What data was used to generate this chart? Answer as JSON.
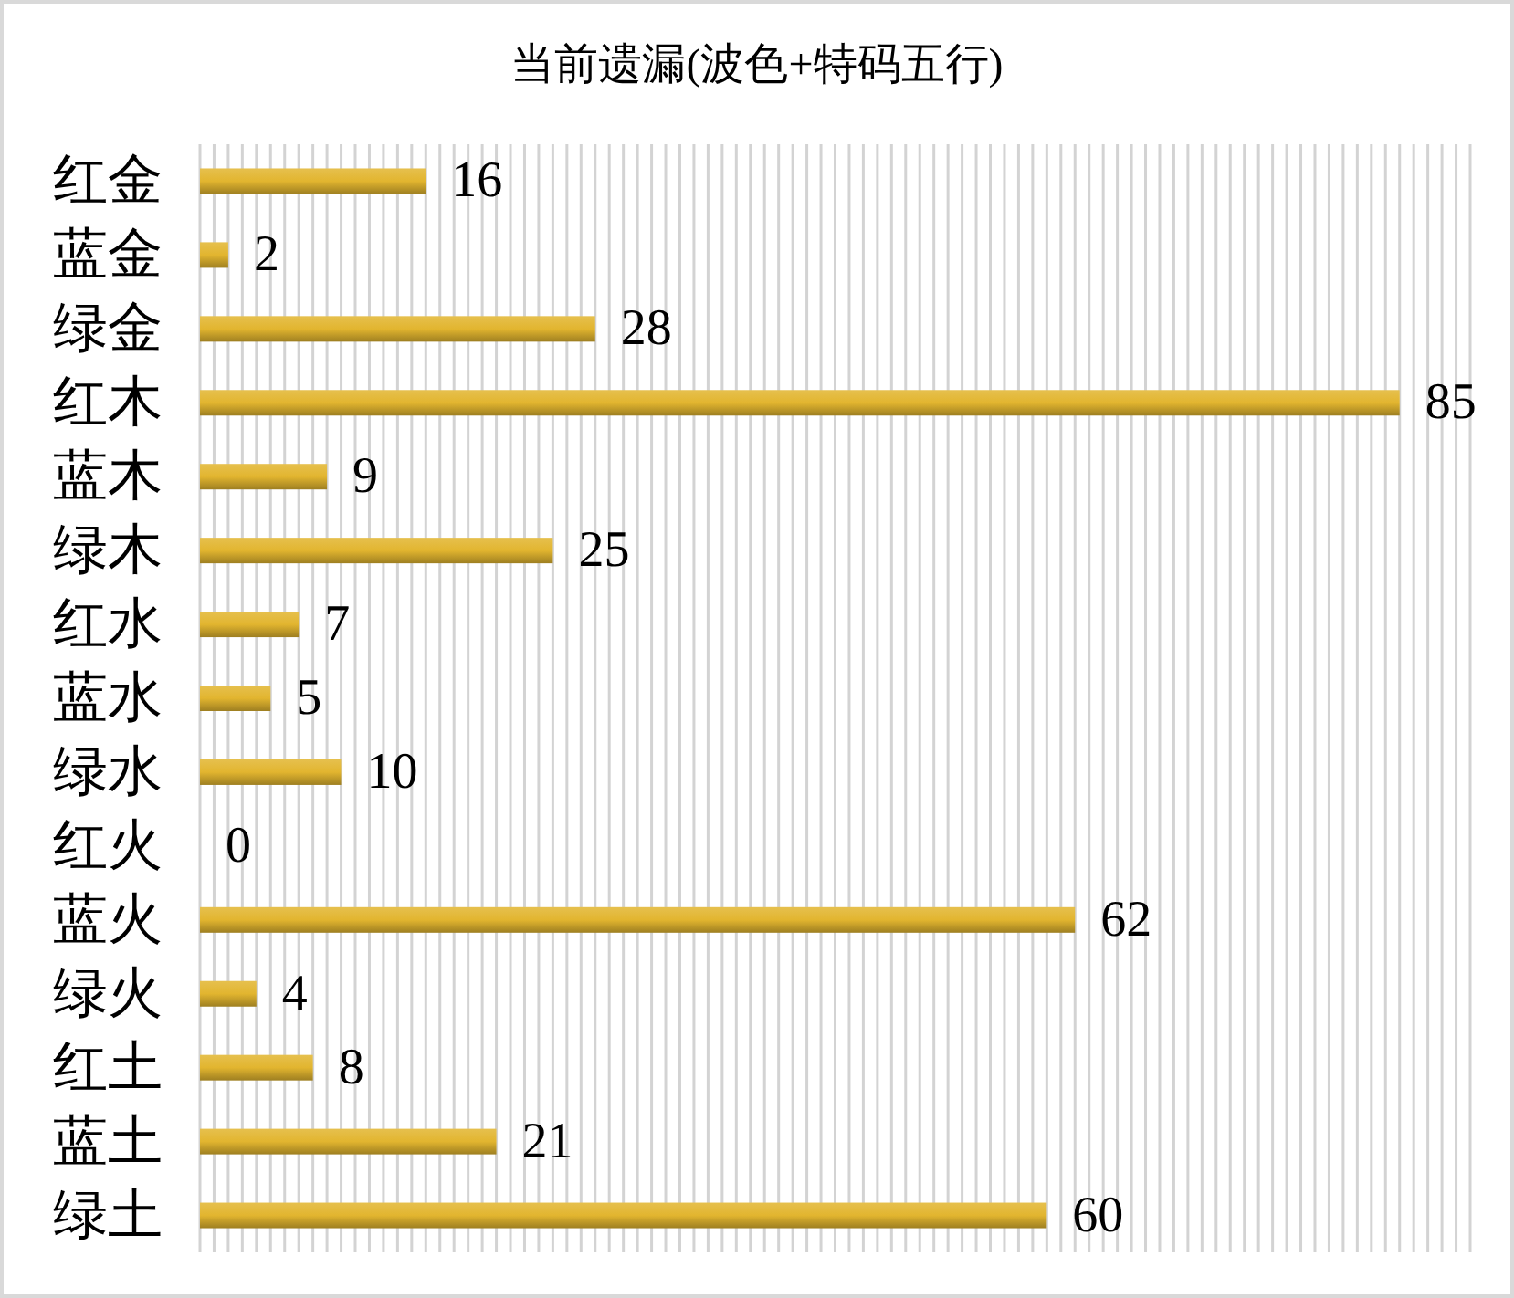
{
  "chart_data": {
    "type": "bar",
    "orientation": "horizontal",
    "title": "当前遗漏(波色+特码五行)",
    "categories": [
      "红金",
      "蓝金",
      "绿金",
      "红木",
      "蓝木",
      "绿木",
      "红水",
      "蓝水",
      "绿水",
      "红火",
      "蓝火",
      "绿火",
      "红土",
      "蓝土",
      "绿土"
    ],
    "values": [
      16,
      2,
      28,
      85,
      9,
      25,
      7,
      5,
      10,
      0,
      62,
      4,
      8,
      21,
      60
    ],
    "color": "#e2b52f",
    "xlim": [
      0,
      90
    ],
    "xticks": [
      {
        "value": 0,
        "label": null
      },
      {
        "value": 1,
        "label": null
      },
      {
        "value": 2,
        "label": null
      },
      {
        "value": 3,
        "label": null
      },
      {
        "value": 4,
        "label": null
      },
      {
        "value": 5,
        "label": null
      },
      {
        "value": 6,
        "label": null
      },
      {
        "value": 7,
        "label": null
      },
      {
        "value": 8,
        "label": null
      },
      {
        "value": 9,
        "label": null
      },
      {
        "value": 10,
        "label": null
      },
      {
        "value": 11,
        "label": null
      },
      {
        "value": 12,
        "label": null
      },
      {
        "value": 13,
        "label": null
      },
      {
        "value": 14,
        "label": null
      },
      {
        "value": 15,
        "label": null
      },
      {
        "value": 16,
        "label": null
      },
      {
        "value": 17,
        "label": null
      },
      {
        "value": 18,
        "label": null
      },
      {
        "value": 19,
        "label": null
      },
      {
        "value": 20,
        "label": null
      },
      {
        "value": 21,
        "label": null
      },
      {
        "value": 22,
        "label": null
      },
      {
        "value": 23,
        "label": null
      },
      {
        "value": 24,
        "label": null
      },
      {
        "value": 25,
        "label": null
      },
      {
        "value": 26,
        "label": null
      },
      {
        "value": 27,
        "label": null
      },
      {
        "value": 28,
        "label": null
      },
      {
        "value": 29,
        "label": null
      },
      {
        "value": 30,
        "label": null
      },
      {
        "value": 31,
        "label": null
      },
      {
        "value": 32,
        "label": null
      },
      {
        "value": 33,
        "label": null
      },
      {
        "value": 34,
        "label": null
      },
      {
        "value": 35,
        "label": null
      },
      {
        "value": 36,
        "label": null
      },
      {
        "value": 37,
        "label": null
      },
      {
        "value": 38,
        "label": null
      },
      {
        "value": 39,
        "label": null
      },
      {
        "value": 40,
        "label": null
      },
      {
        "value": 41,
        "label": null
      },
      {
        "value": 42,
        "label": null
      },
      {
        "value": 43,
        "label": null
      },
      {
        "value": 44,
        "label": null
      },
      {
        "value": 45,
        "label": null
      },
      {
        "value": 46,
        "label": null
      },
      {
        "value": 47,
        "label": null
      },
      {
        "value": 48,
        "label": null
      },
      {
        "value": 49,
        "label": null
      },
      {
        "value": 50,
        "label": null
      },
      {
        "value": 51,
        "label": null
      },
      {
        "value": 52,
        "label": null
      },
      {
        "value": 53,
        "label": null
      },
      {
        "value": 54,
        "label": null
      },
      {
        "value": 55,
        "label": null
      },
      {
        "value": 56,
        "label": null
      },
      {
        "value": 57,
        "label": null
      },
      {
        "value": 58,
        "label": null
      },
      {
        "value": 59,
        "label": null
      },
      {
        "value": 60,
        "label": null
      },
      {
        "value": 61,
        "label": null
      },
      {
        "value": 62,
        "label": null
      },
      {
        "value": 63,
        "label": null
      },
      {
        "value": 64,
        "label": null
      },
      {
        "value": 65,
        "label": null
      },
      {
        "value": 66,
        "label": null
      },
      {
        "value": 67,
        "label": null
      },
      {
        "value": 68,
        "label": null
      },
      {
        "value": 69,
        "label": null
      },
      {
        "value": 70,
        "label": null
      },
      {
        "value": 71,
        "label": null
      },
      {
        "value": 72,
        "label": null
      },
      {
        "value": 73,
        "label": null
      },
      {
        "value": 74,
        "label": null
      },
      {
        "value": 75,
        "label": null
      },
      {
        "value": 76,
        "label": null
      },
      {
        "value": 77,
        "label": null
      },
      {
        "value": 78,
        "label": null
      },
      {
        "value": 79,
        "label": null
      },
      {
        "value": 80,
        "label": null
      },
      {
        "value": 81,
        "label": null
      },
      {
        "value": 82,
        "label": null
      },
      {
        "value": 83,
        "label": null
      },
      {
        "value": 84,
        "label": null
      },
      {
        "value": 85,
        "label": null
      },
      {
        "value": 86,
        "label": null
      },
      {
        "value": 87,
        "label": null
      },
      {
        "value": 88,
        "label": null
      },
      {
        "value": 89,
        "label": null
      },
      {
        "value": 90,
        "label": null
      }
    ],
    "grid": "x",
    "tick_labels": "y",
    "data_labels": true
  }
}
